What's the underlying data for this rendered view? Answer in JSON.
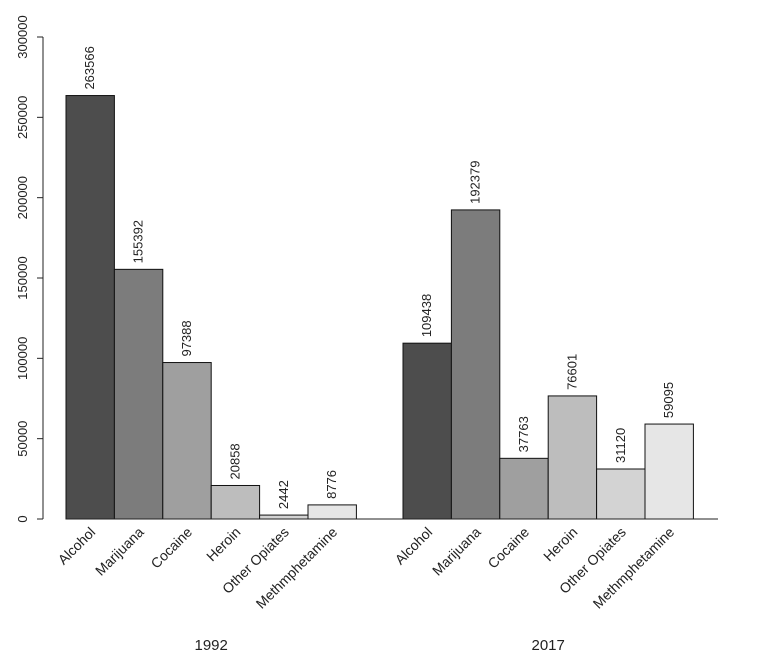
{
  "chart_data": {
    "type": "bar",
    "title": "",
    "xlabel": "",
    "ylabel": "",
    "ylim": [
      0,
      300000
    ],
    "yticks": [
      0,
      50000,
      100000,
      150000,
      200000,
      250000,
      300000
    ],
    "grid": false,
    "legend": "none",
    "categories": [
      "Alcohol",
      "Marijuana",
      "Cocaine",
      "Heroin",
      "Other Opiates",
      "Methmphetamine"
    ],
    "colors": [
      "#4d4d4d",
      "#7c7c7c",
      "#9f9f9f",
      "#bdbdbd",
      "#d3d3d3",
      "#e6e6e6"
    ],
    "groups": [
      {
        "name": "1992",
        "values": [
          263566,
          155392,
          97388,
          20858,
          2442,
          8776
        ]
      },
      {
        "name": "2017",
        "values": [
          109438,
          192379,
          37763,
          76601,
          31120,
          59095
        ]
      }
    ]
  }
}
